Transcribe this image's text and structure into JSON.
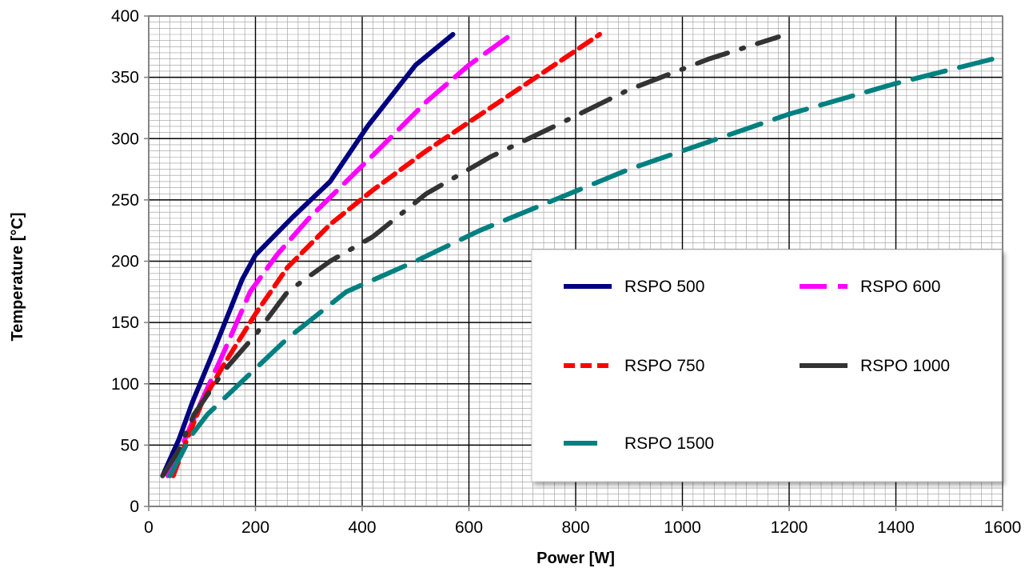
{
  "chart_data": {
    "type": "line",
    "title": "",
    "xlabel": "Power [W]",
    "ylabel": "Temperature [°C]",
    "xlim": [
      0,
      1600
    ],
    "ylim": [
      0,
      400
    ],
    "x_ticks": [
      "0",
      "200",
      "400",
      "600",
      "800",
      "1000",
      "1200",
      "1400",
      "1600"
    ],
    "y_ticks": [
      "0",
      "50",
      "100",
      "150",
      "200",
      "250",
      "300",
      "350",
      "400"
    ],
    "grid": true,
    "legend_position": "right",
    "series": [
      {
        "name": "RSPO 500",
        "color": "#000080",
        "style": "solid",
        "points": [
          [
            26,
            25
          ],
          [
            57,
            55
          ],
          [
            82,
            85
          ],
          [
            120,
            125
          ],
          [
            175,
            185
          ],
          [
            200,
            205
          ],
          [
            270,
            236
          ],
          [
            340,
            265
          ],
          [
            410,
            310
          ],
          [
            500,
            360
          ],
          [
            570,
            385
          ]
        ]
      },
      {
        "name": "RSPO 600",
        "color": "#ff00ff",
        "style": "dash",
        "points": [
          [
            36,
            25
          ],
          [
            68,
            55
          ],
          [
            98,
            85
          ],
          [
            140,
            125
          ],
          [
            190,
            175
          ],
          [
            240,
            205
          ],
          [
            300,
            235
          ],
          [
            370,
            265
          ],
          [
            440,
            295
          ],
          [
            520,
            330
          ],
          [
            600,
            360
          ],
          [
            680,
            385
          ]
        ]
      },
      {
        "name": "RSPO 750",
        "color": "#ff0000",
        "style": "shortdash",
        "points": [
          [
            46,
            25
          ],
          [
            72,
            55
          ],
          [
            100,
            85
          ],
          [
            140,
            115
          ],
          [
            200,
            157
          ],
          [
            260,
            195
          ],
          [
            340,
            230
          ],
          [
            420,
            258
          ],
          [
            520,
            290
          ],
          [
            640,
            325
          ],
          [
            760,
            360
          ],
          [
            845,
            385
          ]
        ]
      },
      {
        "name": "RSPO 1000",
        "color": "#333333",
        "style": "dashdot",
        "points": [
          [
            26,
            25
          ],
          [
            55,
            45
          ],
          [
            85,
            75
          ],
          [
            140,
            110
          ],
          [
            200,
            140
          ],
          [
            260,
            175
          ],
          [
            340,
            200
          ],
          [
            420,
            220
          ],
          [
            520,
            255
          ],
          [
            640,
            285
          ],
          [
            760,
            310
          ],
          [
            900,
            340
          ],
          [
            1050,
            365
          ],
          [
            1180,
            383
          ]
        ]
      },
      {
        "name": "RSPO 1500",
        "color": "#008080",
        "style": "longdash",
        "points": [
          [
            40,
            25
          ],
          [
            80,
            58
          ],
          [
            110,
            75
          ],
          [
            170,
            100
          ],
          [
            260,
            137
          ],
          [
            370,
            175
          ],
          [
            500,
            200
          ],
          [
            620,
            225
          ],
          [
            760,
            250
          ],
          [
            900,
            275
          ],
          [
            1000,
            290
          ],
          [
            1200,
            320
          ],
          [
            1400,
            345
          ],
          [
            1600,
            367
          ]
        ]
      }
    ]
  }
}
